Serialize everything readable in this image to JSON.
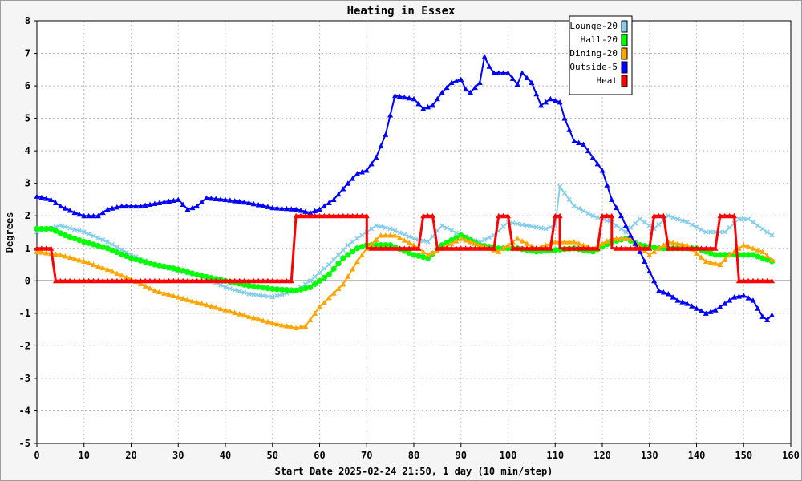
{
  "chart_data": {
    "type": "line",
    "title": "Heating in Essex",
    "xlabel": "Start Date 2025-02-24 21:50, 1 day (10 min/step)",
    "ylabel": "Degrees",
    "xlim": [
      0,
      160
    ],
    "ylim": [
      -5,
      8
    ],
    "x_ticks": [
      "0",
      "10",
      "20",
      "30",
      "40",
      "50",
      "60",
      "70",
      "80",
      "90",
      "100",
      "110",
      "120",
      "130",
      "140",
      "150",
      "160"
    ],
    "y_ticks": [
      "8",
      "7",
      "6",
      "5",
      "4",
      "3",
      "2",
      "1",
      "0",
      "-1",
      "-2",
      "-3",
      "-4",
      "-5"
    ],
    "grid": true,
    "legend_position": "top-right",
    "series": [
      {
        "name": "Lounge-20",
        "color": "#87ceeb",
        "marker": "x",
        "points": [
          [
            0,
            1.5
          ],
          [
            5,
            1.7
          ],
          [
            10,
            1.5
          ],
          [
            15,
            1.2
          ],
          [
            20,
            0.8
          ],
          [
            25,
            0.5
          ],
          [
            30,
            0.3
          ],
          [
            35,
            0.15
          ],
          [
            40,
            -0.2
          ],
          [
            45,
            -0.4
          ],
          [
            50,
            -0.5
          ],
          [
            55,
            -0.3
          ],
          [
            58,
            0.0
          ],
          [
            62,
            0.5
          ],
          [
            66,
            1.1
          ],
          [
            70,
            1.5
          ],
          [
            72,
            1.7
          ],
          [
            75,
            1.6
          ],
          [
            80,
            1.3
          ],
          [
            83,
            1.2
          ],
          [
            86,
            1.7
          ],
          [
            90,
            1.4
          ],
          [
            94,
            1.2
          ],
          [
            97,
            1.4
          ],
          [
            100,
            1.8
          ],
          [
            104,
            1.7
          ],
          [
            108,
            1.6
          ],
          [
            110,
            1.7
          ],
          [
            111,
            2.9
          ],
          [
            114,
            2.3
          ],
          [
            118,
            2.0
          ],
          [
            122,
            1.8
          ],
          [
            125,
            1.5
          ],
          [
            128,
            1.9
          ],
          [
            131,
            1.6
          ],
          [
            134,
            2.0
          ],
          [
            138,
            1.8
          ],
          [
            142,
            1.5
          ],
          [
            146,
            1.5
          ],
          [
            149,
            1.9
          ],
          [
            151,
            1.9
          ],
          [
            154,
            1.6
          ],
          [
            156,
            1.4
          ]
        ]
      },
      {
        "name": "Hall-20",
        "color": "#00ff00",
        "marker": "circle",
        "points": [
          [
            0,
            1.6
          ],
          [
            3,
            1.6
          ],
          [
            6,
            1.4
          ],
          [
            10,
            1.2
          ],
          [
            15,
            1.0
          ],
          [
            20,
            0.7
          ],
          [
            25,
            0.5
          ],
          [
            30,
            0.35
          ],
          [
            35,
            0.15
          ],
          [
            40,
            0.0
          ],
          [
            45,
            -0.15
          ],
          [
            50,
            -0.25
          ],
          [
            55,
            -0.3
          ],
          [
            58,
            -0.2
          ],
          [
            62,
            0.2
          ],
          [
            65,
            0.7
          ],
          [
            68,
            1.0
          ],
          [
            70,
            1.1
          ],
          [
            75,
            1.1
          ],
          [
            80,
            0.8
          ],
          [
            83,
            0.7
          ],
          [
            86,
            1.1
          ],
          [
            90,
            1.4
          ],
          [
            94,
            1.1
          ],
          [
            98,
            1.0
          ],
          [
            102,
            1.0
          ],
          [
            106,
            0.9
          ],
          [
            110,
            0.95
          ],
          [
            114,
            1.0
          ],
          [
            118,
            0.9
          ],
          [
            122,
            1.2
          ],
          [
            125,
            1.3
          ],
          [
            128,
            1.1
          ],
          [
            132,
            1.0
          ],
          [
            136,
            1.0
          ],
          [
            140,
            1.0
          ],
          [
            144,
            0.8
          ],
          [
            148,
            0.8
          ],
          [
            152,
            0.8
          ],
          [
            156,
            0.6
          ]
        ]
      },
      {
        "name": "Dining-20",
        "color": "#ffa500",
        "marker": "triangle",
        "points": [
          [
            0,
            0.9
          ],
          [
            5,
            0.8
          ],
          [
            10,
            0.6
          ],
          [
            15,
            0.35
          ],
          [
            20,
            0.05
          ],
          [
            25,
            -0.3
          ],
          [
            30,
            -0.5
          ],
          [
            35,
            -0.7
          ],
          [
            40,
            -0.9
          ],
          [
            45,
            -1.1
          ],
          [
            50,
            -1.3
          ],
          [
            55,
            -1.45
          ],
          [
            57,
            -1.4
          ],
          [
            60,
            -0.8
          ],
          [
            65,
            -0.1
          ],
          [
            68,
            0.6
          ],
          [
            70,
            1.0
          ],
          [
            73,
            1.4
          ],
          [
            76,
            1.4
          ],
          [
            80,
            1.1
          ],
          [
            83,
            0.8
          ],
          [
            86,
            1.0
          ],
          [
            90,
            1.3
          ],
          [
            94,
            1.1
          ],
          [
            98,
            0.9
          ],
          [
            102,
            1.3
          ],
          [
            106,
            1.0
          ],
          [
            110,
            1.2
          ],
          [
            114,
            1.2
          ],
          [
            118,
            1.0
          ],
          [
            122,
            1.3
          ],
          [
            126,
            1.3
          ],
          [
            130,
            0.8
          ],
          [
            134,
            1.2
          ],
          [
            138,
            1.1
          ],
          [
            142,
            0.6
          ],
          [
            145,
            0.5
          ],
          [
            147,
            0.8
          ],
          [
            150,
            1.1
          ],
          [
            154,
            0.9
          ],
          [
            156,
            0.65
          ]
        ]
      },
      {
        "name": "Outside-5",
        "color": "#0000ff",
        "marker": "triangle",
        "points": [
          [
            0,
            2.6
          ],
          [
            3,
            2.5
          ],
          [
            5,
            2.3
          ],
          [
            8,
            2.1
          ],
          [
            10,
            2.0
          ],
          [
            13,
            2.0
          ],
          [
            15,
            2.2
          ],
          [
            18,
            2.3
          ],
          [
            22,
            2.3
          ],
          [
            26,
            2.4
          ],
          [
            30,
            2.5
          ],
          [
            32,
            2.2
          ],
          [
            34,
            2.3
          ],
          [
            36,
            2.55
          ],
          [
            40,
            2.5
          ],
          [
            45,
            2.4
          ],
          [
            50,
            2.25
          ],
          [
            55,
            2.2
          ],
          [
            58,
            2.1
          ],
          [
            60,
            2.2
          ],
          [
            63,
            2.5
          ],
          [
            66,
            3.0
          ],
          [
            68,
            3.3
          ],
          [
            70,
            3.4
          ],
          [
            72,
            3.8
          ],
          [
            74,
            4.5
          ],
          [
            76,
            5.7
          ],
          [
            80,
            5.6
          ],
          [
            82,
            5.3
          ],
          [
            84,
            5.4
          ],
          [
            86,
            5.8
          ],
          [
            88,
            6.1
          ],
          [
            90,
            6.2
          ],
          [
            91,
            5.9
          ],
          [
            92,
            5.8
          ],
          [
            94,
            6.1
          ],
          [
            95,
            6.9
          ],
          [
            96,
            6.6
          ],
          [
            97,
            6.4
          ],
          [
            100,
            6.4
          ],
          [
            102,
            6.05
          ],
          [
            103,
            6.4
          ],
          [
            105,
            6.1
          ],
          [
            107,
            5.4
          ],
          [
            109,
            5.6
          ],
          [
            111,
            5.5
          ],
          [
            112,
            5.0
          ],
          [
            114,
            4.3
          ],
          [
            116,
            4.2
          ],
          [
            118,
            3.8
          ],
          [
            120,
            3.4
          ],
          [
            122,
            2.5
          ],
          [
            124,
            2.0
          ],
          [
            126,
            1.4
          ],
          [
            128,
            0.9
          ],
          [
            130,
            0.3
          ],
          [
            132,
            -0.3
          ],
          [
            134,
            -0.4
          ],
          [
            136,
            -0.6
          ],
          [
            138,
            -0.7
          ],
          [
            140,
            -0.85
          ],
          [
            142,
            -1.0
          ],
          [
            144,
            -0.9
          ],
          [
            146,
            -0.7
          ],
          [
            148,
            -0.5
          ],
          [
            150,
            -0.45
          ],
          [
            152,
            -0.6
          ],
          [
            154,
            -1.1
          ],
          [
            155,
            -1.2
          ],
          [
            156,
            -1.05
          ]
        ]
      },
      {
        "name": "Heat",
        "color": "#ff0000",
        "marker": "triangle",
        "points": [
          [
            0,
            1
          ],
          [
            3,
            1
          ],
          [
            4,
            0
          ],
          [
            54,
            0
          ],
          [
            55,
            2
          ],
          [
            70,
            2
          ],
          [
            70,
            1
          ],
          [
            81,
            1
          ],
          [
            82,
            2
          ],
          [
            84,
            2
          ],
          [
            85,
            1
          ],
          [
            97,
            1
          ],
          [
            98,
            2
          ],
          [
            100,
            2
          ],
          [
            101,
            1
          ],
          [
            109,
            1
          ],
          [
            110,
            2
          ],
          [
            111,
            2
          ],
          [
            111,
            1
          ],
          [
            119,
            1
          ],
          [
            120,
            2
          ],
          [
            122,
            2
          ],
          [
            122,
            1
          ],
          [
            130,
            1
          ],
          [
            131,
            2
          ],
          [
            133,
            2
          ],
          [
            134,
            1
          ],
          [
            144,
            1
          ],
          [
            145,
            2
          ],
          [
            148,
            2
          ],
          [
            149,
            0
          ],
          [
            156,
            0
          ]
        ]
      }
    ]
  }
}
